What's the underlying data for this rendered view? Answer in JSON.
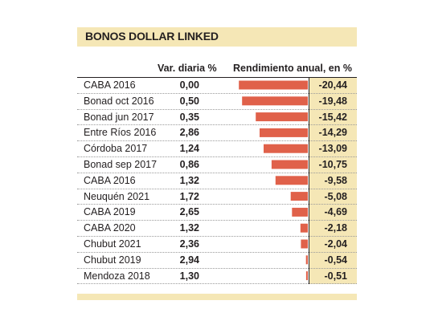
{
  "chart_data": {
    "type": "bar",
    "title": "BONOS DOLLAR LINKED",
    "columns": [
      "Var. diaria %",
      "Rendimiento anual, en %"
    ],
    "categories": [
      "CABA 2016",
      "Bonad oct 2016",
      "Bonad jun 2017",
      "Entre Ríos 2016",
      "Córdoba 2017",
      "Bonad sep 2017",
      "CABA 2016",
      "Neuquén 2021",
      "CABA 2019",
      "CABA 2020",
      "Chubut 2021",
      "Chubut 2019",
      "Mendoza 2018"
    ],
    "var_diaria": [
      "0,00",
      "0,50",
      "0,35",
      "2,86",
      "1,24",
      "0,86",
      "1,32",
      "1,72",
      "2,65",
      "1,32",
      "2,36",
      "2,94",
      "1,30"
    ],
    "rendimiento_labels": [
      "-20,44",
      "-19,48",
      "-15,42",
      "-14,29",
      "-13,09",
      "-10,75",
      "-9,58",
      "-5,08",
      "-4,69",
      "-2,18",
      "-2,04",
      "-0,54",
      "-0,51"
    ],
    "values": [
      -20.44,
      -19.48,
      -15.42,
      -14.29,
      -13.09,
      -10.75,
      -9.58,
      -5.08,
      -4.69,
      -2.18,
      -2.04,
      -0.54,
      -0.51
    ],
    "bar_color": "#e0614a",
    "accent_color": "#f5e7b6"
  }
}
